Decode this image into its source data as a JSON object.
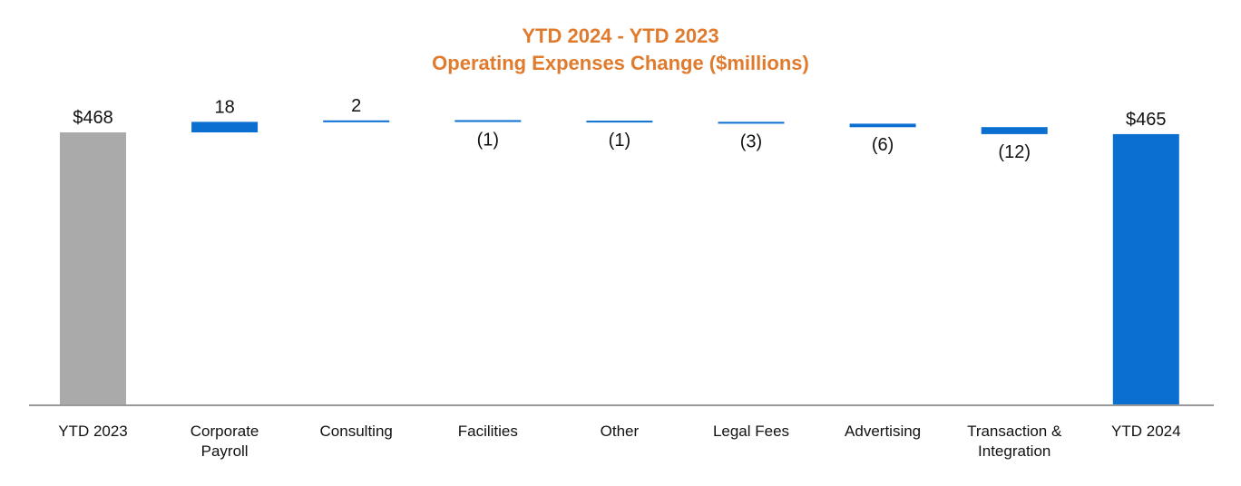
{
  "chart_data": {
    "type": "bar",
    "subtype": "waterfall",
    "title": "YTD 2024 - YTD 2023",
    "subtitle": "Operating Expenses Change ($millions)",
    "categories": [
      [
        "YTD 2023"
      ],
      [
        "Corporate",
        "Payroll"
      ],
      [
        "Consulting"
      ],
      [
        "Facilities"
      ],
      [
        "Other"
      ],
      [
        "Legal Fees"
      ],
      [
        "Advertising"
      ],
      [
        "Transaction &",
        "Integration"
      ],
      [
        "YTD 2024"
      ]
    ],
    "values": [
      468,
      18,
      2,
      -1,
      -1,
      -3,
      -6,
      -12,
      465
    ],
    "bar_kinds": [
      "total",
      "delta",
      "delta",
      "delta",
      "delta",
      "delta",
      "delta",
      "delta",
      "total"
    ],
    "data_labels": [
      "$468",
      "18",
      "2",
      "(1)",
      "(1)",
      "(3)",
      "(6)",
      "(12)",
      "$465"
    ],
    "xlabel": "",
    "ylabel": "",
    "legend": "none",
    "grid": false,
    "colors": {
      "title": "#E07B2E",
      "start_total": "#AAAAAA",
      "end_total": "#0A6FD1",
      "delta": "#0A6FD1",
      "axis": "#999999"
    }
  }
}
